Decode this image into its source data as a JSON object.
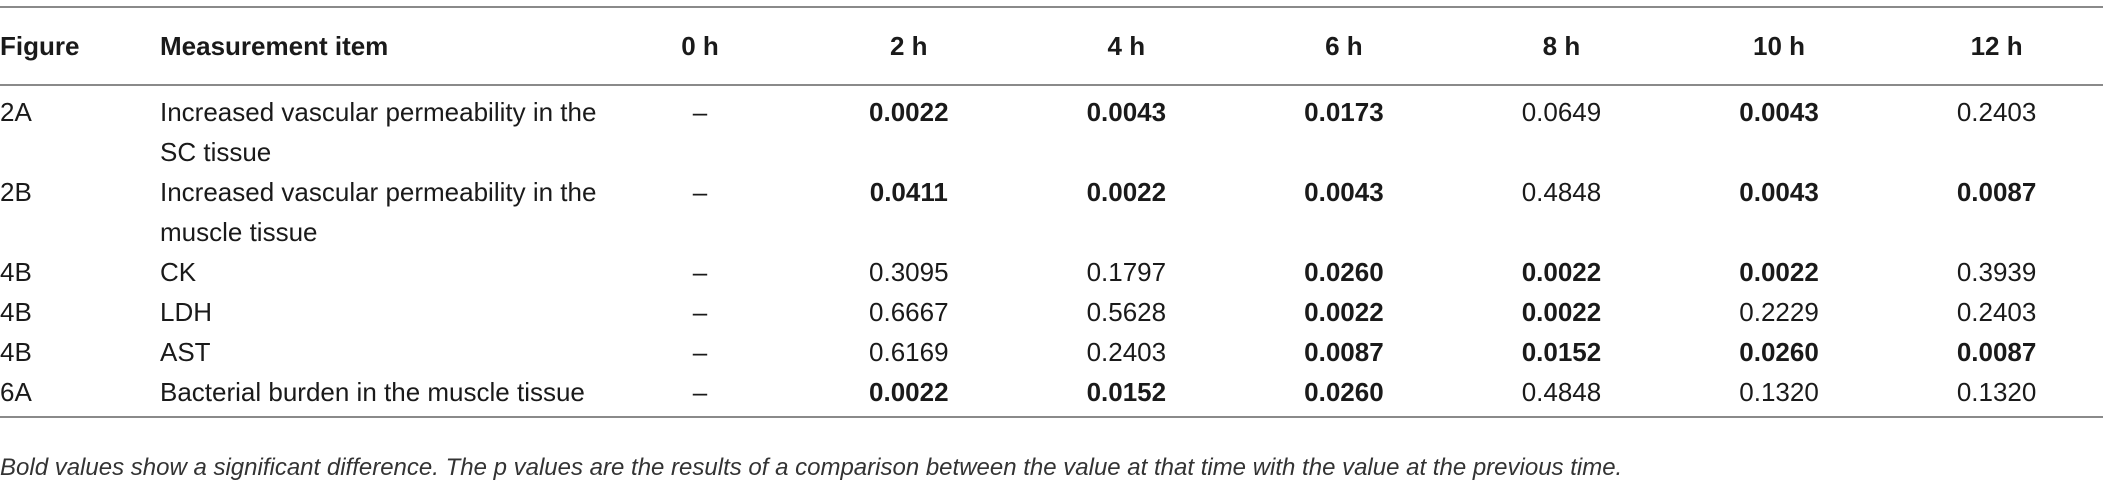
{
  "table": {
    "headers": [
      "Figure",
      "Measurement item",
      "0 h",
      "2 h",
      "4 h",
      "6 h",
      "8 h",
      "10 h",
      "12 h"
    ],
    "rows": [
      {
        "figure": "2A",
        "item": "Increased vascular permeability in the SC tissue",
        "cells": [
          {
            "v": "–",
            "bold": false
          },
          {
            "v": "0.0022",
            "bold": true
          },
          {
            "v": "0.0043",
            "bold": true
          },
          {
            "v": "0.0173",
            "bold": true
          },
          {
            "v": "0.0649",
            "bold": false
          },
          {
            "v": "0.0043",
            "bold": true
          },
          {
            "v": "0.2403",
            "bold": false
          }
        ]
      },
      {
        "figure": "2B",
        "item": "Increased vascular permeability in the muscle tissue",
        "cells": [
          {
            "v": "–",
            "bold": false
          },
          {
            "v": "0.0411",
            "bold": true
          },
          {
            "v": "0.0022",
            "bold": true
          },
          {
            "v": "0.0043",
            "bold": true
          },
          {
            "v": "0.4848",
            "bold": false
          },
          {
            "v": "0.0043",
            "bold": true
          },
          {
            "v": "0.0087",
            "bold": true
          }
        ]
      },
      {
        "figure": "4B",
        "item": "CK",
        "cells": [
          {
            "v": "–",
            "bold": false
          },
          {
            "v": "0.3095",
            "bold": false
          },
          {
            "v": "0.1797",
            "bold": false
          },
          {
            "v": "0.0260",
            "bold": true
          },
          {
            "v": "0.0022",
            "bold": true
          },
          {
            "v": "0.0022",
            "bold": true
          },
          {
            "v": "0.3939",
            "bold": false
          }
        ]
      },
      {
        "figure": "4B",
        "item": "LDH",
        "cells": [
          {
            "v": "–",
            "bold": false
          },
          {
            "v": "0.6667",
            "bold": false
          },
          {
            "v": "0.5628",
            "bold": false
          },
          {
            "v": "0.0022",
            "bold": true
          },
          {
            "v": "0.0022",
            "bold": true
          },
          {
            "v": "0.2229",
            "bold": false
          },
          {
            "v": "0.2403",
            "bold": false
          }
        ]
      },
      {
        "figure": "4B",
        "item": "AST",
        "cells": [
          {
            "v": "–",
            "bold": false
          },
          {
            "v": "0.6169",
            "bold": false
          },
          {
            "v": "0.2403",
            "bold": false
          },
          {
            "v": "0.0087",
            "bold": true
          },
          {
            "v": "0.0152",
            "bold": true
          },
          {
            "v": "0.0260",
            "bold": true
          },
          {
            "v": "0.0087",
            "bold": true
          }
        ]
      },
      {
        "figure": "6A",
        "item": "Bacterial burden in the muscle tissue",
        "cells": [
          {
            "v": "–",
            "bold": false
          },
          {
            "v": "0.0022",
            "bold": true
          },
          {
            "v": "0.0152",
            "bold": true
          },
          {
            "v": "0.0260",
            "bold": true
          },
          {
            "v": "0.4848",
            "bold": false
          },
          {
            "v": "0.1320",
            "bold": false
          },
          {
            "v": "0.1320",
            "bold": false
          }
        ]
      }
    ]
  },
  "footnote": "Bold values show a significant difference. The p values are the results of a comparison between the value at that time with the value at the previous time."
}
